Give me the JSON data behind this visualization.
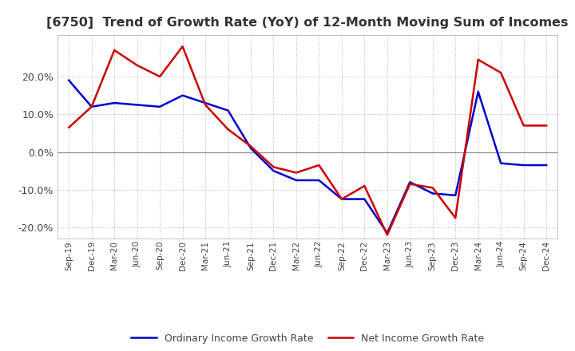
{
  "title": "[6750]  Trend of Growth Rate (YoY) of 12-Month Moving Sum of Incomes",
  "title_fontsize": 11.5,
  "ylim": [
    -23,
    31
  ],
  "yticks": [
    -20,
    -10,
    0,
    10,
    20
  ],
  "background_color": "#ffffff",
  "grid_color": "#bbbbbb",
  "legend_labels": [
    "Ordinary Income Growth Rate",
    "Net Income Growth Rate"
  ],
  "legend_colors": [
    "#0000cc",
    "#cc0000"
  ],
  "x_labels": [
    "Sep-19",
    "Dec-19",
    "Mar-20",
    "Jun-20",
    "Sep-20",
    "Dec-20",
    "Mar-21",
    "Jun-21",
    "Sep-21",
    "Dec-21",
    "Mar-22",
    "Jun-22",
    "Sep-22",
    "Dec-22",
    "Mar-23",
    "Jun-23",
    "Sep-23",
    "Dec-23",
    "Mar-24",
    "Jun-24",
    "Sep-24",
    "Dec-24"
  ],
  "ordinary_income": [
    19.0,
    12.0,
    13.0,
    12.5,
    12.0,
    15.0,
    13.0,
    11.0,
    1.0,
    -5.0,
    -7.5,
    -7.5,
    -12.5,
    -12.5,
    -21.5,
    -8.0,
    -11.0,
    -11.5,
    16.0,
    -3.0,
    -3.5,
    -3.5
  ],
  "net_income": [
    6.5,
    12.0,
    27.0,
    23.0,
    20.0,
    28.0,
    12.5,
    6.0,
    1.5,
    -4.0,
    -5.5,
    -3.5,
    -12.5,
    -9.0,
    -22.0,
    -8.5,
    -9.5,
    -17.5,
    24.5,
    21.0,
    7.0,
    7.0
  ]
}
